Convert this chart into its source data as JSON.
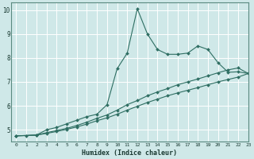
{
  "xlabel": "Humidex (Indice chaleur)",
  "bg_color": "#cfe8e8",
  "grid_color": "#ffffff",
  "line_color": "#2e6e62",
  "xlim": [
    -0.5,
    23
  ],
  "ylim": [
    4.5,
    10.3
  ],
  "xticks": [
    0,
    1,
    2,
    3,
    4,
    5,
    6,
    7,
    8,
    9,
    10,
    11,
    12,
    13,
    14,
    15,
    16,
    17,
    18,
    19,
    20,
    21,
    22,
    23
  ],
  "yticks": [
    5,
    6,
    7,
    8,
    9,
    10
  ],
  "line1_x": [
    0,
    1,
    2,
    3,
    4,
    5,
    6,
    7,
    8,
    9,
    10,
    11,
    12,
    13,
    14,
    15,
    16,
    17,
    18,
    19,
    20,
    21,
    22,
    23
  ],
  "line1_y": [
    4.75,
    4.76,
    4.78,
    5.0,
    5.1,
    5.25,
    5.4,
    5.55,
    5.65,
    6.05,
    7.55,
    8.2,
    10.05,
    9.0,
    8.35,
    8.15,
    8.15,
    8.2,
    8.5,
    8.35,
    7.8,
    7.4,
    7.42,
    7.35
  ],
  "line2_x": [
    0,
    2,
    3,
    4,
    5,
    6,
    7,
    8,
    9,
    10,
    11,
    12,
    13,
    14,
    15,
    16,
    17,
    18,
    19,
    20,
    21,
    22,
    23
  ],
  "line2_y": [
    4.75,
    4.78,
    4.88,
    4.97,
    5.06,
    5.18,
    5.32,
    5.48,
    5.62,
    5.82,
    6.05,
    6.22,
    6.42,
    6.58,
    6.72,
    6.88,
    7.0,
    7.12,
    7.25,
    7.38,
    7.5,
    7.58,
    7.35
  ],
  "line3_x": [
    0,
    2,
    3,
    4,
    5,
    6,
    7,
    8,
    9,
    10,
    11,
    12,
    13,
    14,
    15,
    16,
    17,
    18,
    19,
    20,
    21,
    22,
    23
  ],
  "line3_y": [
    4.75,
    4.78,
    4.85,
    4.93,
    5.02,
    5.12,
    5.24,
    5.38,
    5.5,
    5.65,
    5.82,
    5.98,
    6.14,
    6.28,
    6.42,
    6.54,
    6.65,
    6.76,
    6.88,
    7.0,
    7.1,
    7.2,
    7.35
  ]
}
